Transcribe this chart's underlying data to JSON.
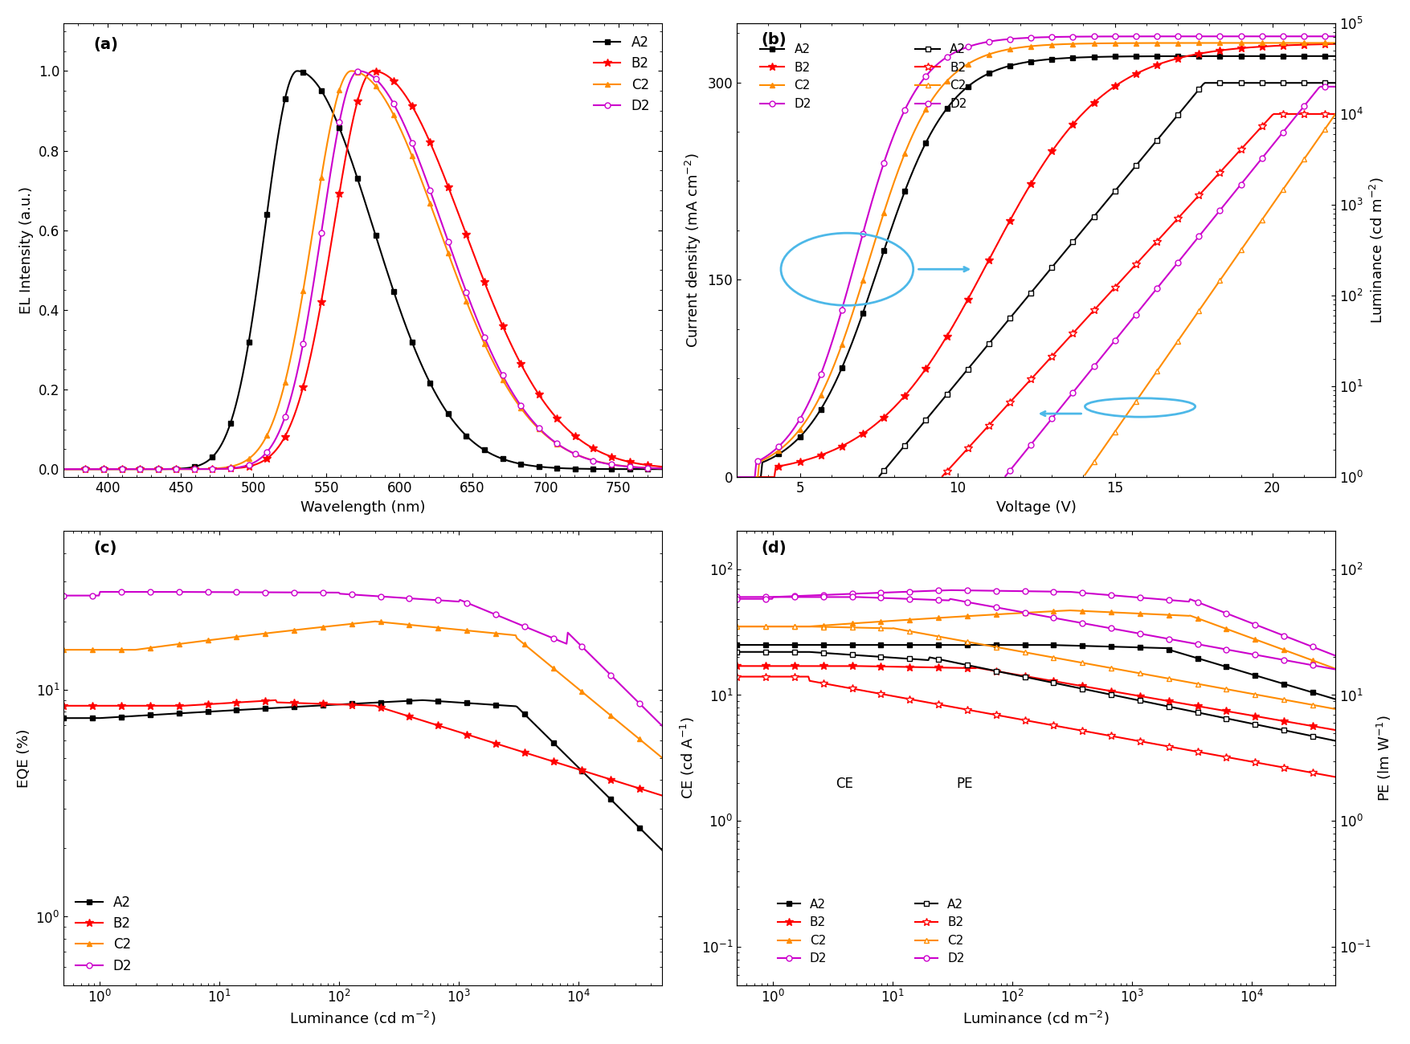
{
  "colors": {
    "A2": "#000000",
    "B2": "#ff0000",
    "C2": "#ff8c00",
    "D2": "#cc00cc"
  },
  "panel_a": {
    "title": "(a)",
    "xlabel": "Wavelength (nm)",
    "ylabel": "EL Intensity (a.u.)",
    "xlim": [
      370,
      780
    ],
    "ylim": [
      -0.02,
      1.12
    ],
    "xticks": [
      400,
      450,
      500,
      550,
      600,
      650,
      700,
      750
    ],
    "yticks": [
      0.0,
      0.2,
      0.4,
      0.6,
      0.8,
      1.0
    ]
  },
  "panel_b": {
    "title": "(b)",
    "xlabel": "Voltage (V)",
    "ylabel_left": "Current density (mA cm$^{-2}$)",
    "ylabel_right": "Luminance (cd m$^{-2}$)",
    "xlim": [
      3,
      22
    ],
    "ylim_left": [
      0,
      345
    ],
    "ylim_right": [
      1.0,
      100000.0
    ],
    "xticks": [
      5,
      10,
      15,
      20
    ],
    "yticks_left": [
      0,
      150,
      300
    ]
  },
  "panel_c": {
    "title": "(c)",
    "xlabel": "Luminance (cd m$^{-2}$)",
    "ylabel": "EQE (%)",
    "xlim": [
      0.5,
      50000
    ],
    "ylim": [
      0.5,
      50
    ]
  },
  "panel_d": {
    "title": "(d)",
    "xlabel": "Luminance (cd m$^{-2}$)",
    "ylabel_left": "CE (cd A$^{-1}$)",
    "ylabel_right": "PE (lm W$^{-1}$)",
    "xlim": [
      0.5,
      50000
    ],
    "ylim_left": [
      0.05,
      200
    ],
    "ylim_right": [
      0.05,
      200
    ]
  }
}
